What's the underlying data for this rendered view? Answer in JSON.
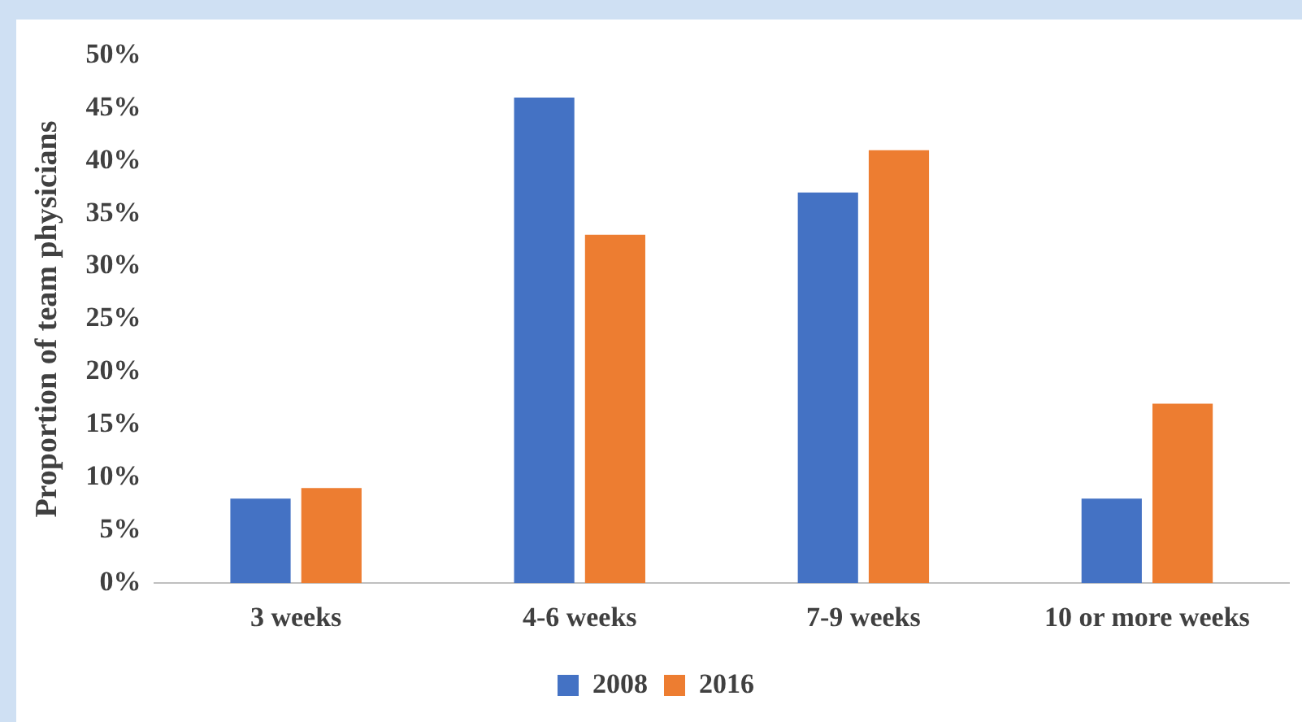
{
  "chart_data": {
    "type": "bar",
    "ylabel": "Proportion of team physicians",
    "categories": [
      "3 weeks",
      "4-6 weeks",
      "7-9 weeks",
      "10 or more weeks"
    ],
    "series": [
      {
        "name": "2008",
        "color": "#4472c4",
        "values": [
          8,
          46,
          37,
          8
        ]
      },
      {
        "name": "2016",
        "color": "#ed7d31",
        "values": [
          9,
          33,
          41,
          17
        ]
      }
    ],
    "ylim": [
      0,
      50
    ],
    "yticks": [
      {
        "value": 0,
        "label": "0%"
      },
      {
        "value": 5,
        "label": "5%"
      },
      {
        "value": 10,
        "label": "10%"
      },
      {
        "value": 15,
        "label": "15%"
      },
      {
        "value": 20,
        "label": "20%"
      },
      {
        "value": 25,
        "label": "25%"
      },
      {
        "value": 30,
        "label": "30%"
      },
      {
        "value": 35,
        "label": "35%"
      },
      {
        "value": 40,
        "label": "40%"
      },
      {
        "value": 45,
        "label": "45%"
      },
      {
        "value": 50,
        "label": "50%"
      }
    ],
    "grid": false,
    "legend": "bottom"
  }
}
